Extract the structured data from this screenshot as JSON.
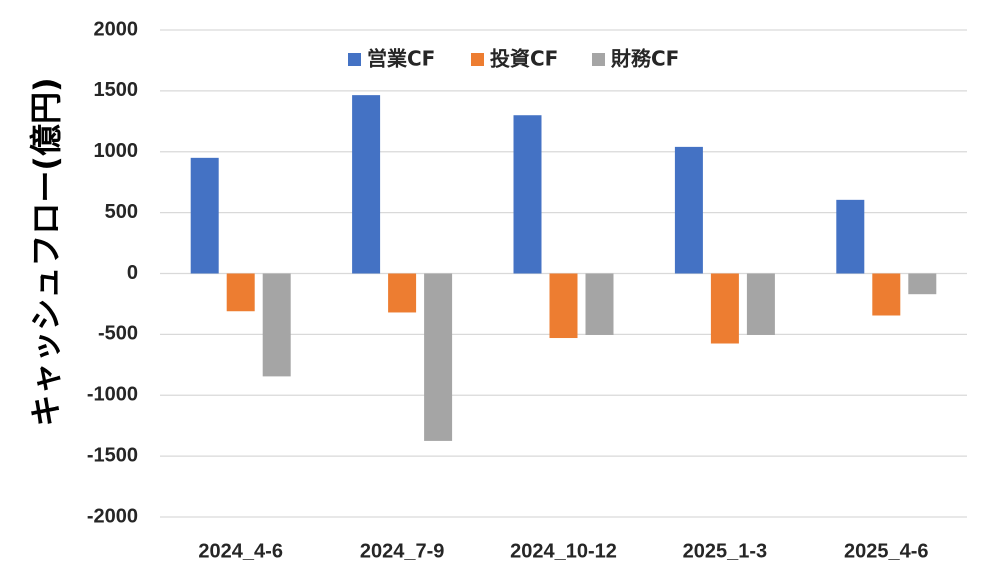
{
  "chart_data": {
    "type": "bar",
    "title": "",
    "xlabel": "",
    "ylabel": "キャッシュフロー(億円)",
    "ylim": [
      -2000,
      2000
    ],
    "yticks": [
      2000,
      1500,
      1000,
      500,
      0,
      -500,
      -1000,
      -1500,
      -2000
    ],
    "grid": true,
    "legend_position": "top",
    "categories": [
      "2024_4-6",
      "2024_7-9",
      "2024_10-12",
      "2025_1-3",
      "2025_4-6"
    ],
    "series": [
      {
        "name": "営業CF",
        "color": "#4472C4",
        "values": [
          950,
          1465,
          1300,
          1040,
          605
        ]
      },
      {
        "name": "投資CF",
        "color": "#ED7D31",
        "values": [
          -310,
          -320,
          -530,
          -575,
          -345
        ]
      },
      {
        "name": "財務CF",
        "color": "#A5A5A5",
        "values": [
          -845,
          -1375,
          -505,
          -505,
          -170
        ]
      }
    ]
  }
}
